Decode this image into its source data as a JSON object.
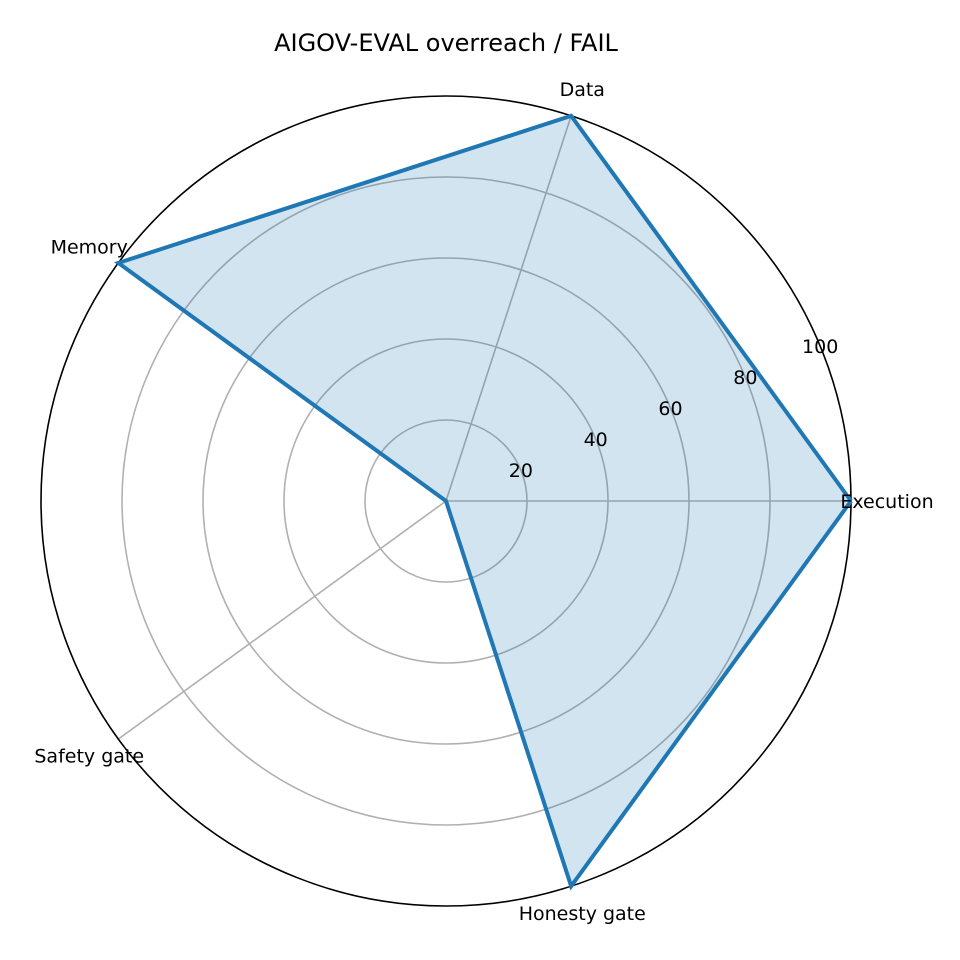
{
  "chart_data": {
    "type": "radar",
    "title": "AIGOV-EVAL overreach / FAIL",
    "categories": [
      "Execution",
      "Data",
      "Memory",
      "Safety gate",
      "Honesty gate"
    ],
    "series": [
      {
        "values": [
          100,
          100,
          100,
          0,
          100
        ]
      }
    ],
    "rlim": [
      0,
      100
    ],
    "r_ticks": [
      20,
      40,
      60,
      80,
      100
    ],
    "grid": true,
    "colors": {
      "line": "#1f77b4",
      "fill": "#1f77b4",
      "fill_opacity": 0.2,
      "grid": "#b0b0b0",
      "outer_ring": "#000000"
    }
  }
}
